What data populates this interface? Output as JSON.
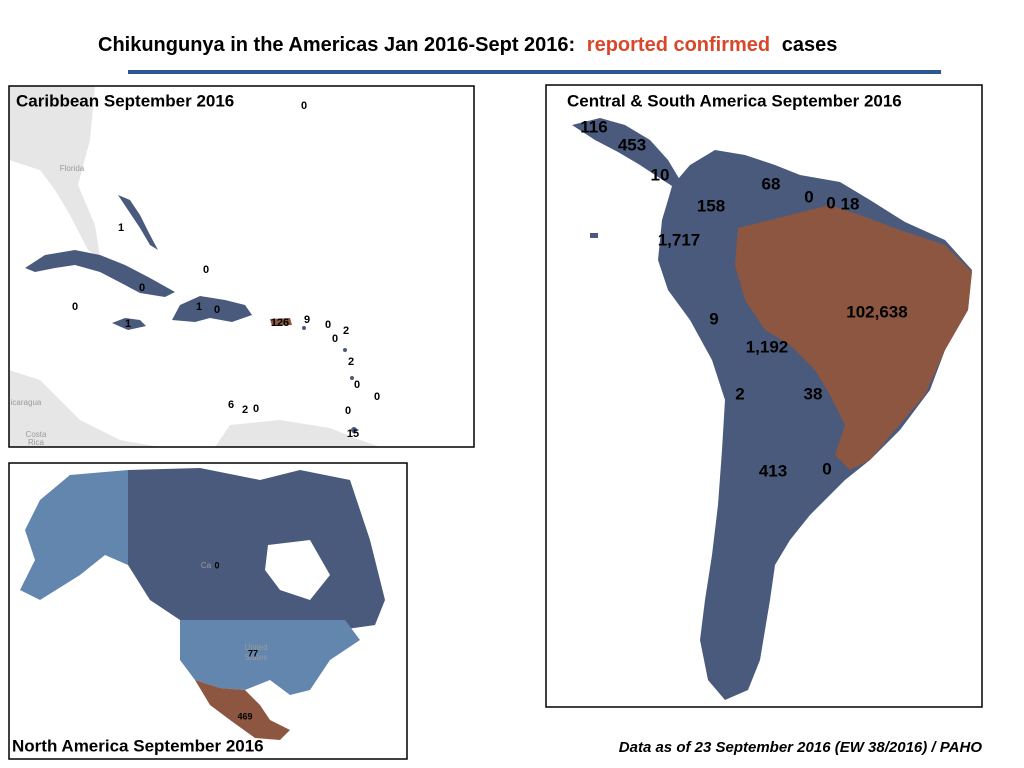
{
  "title": {
    "main": "Chikungunya in the Americas Jan 2016-Sept 2016:",
    "highlight": "reported confirmed",
    "end": "cases"
  },
  "caribbean": {
    "title": "Caribbean September 2016",
    "places": [
      "Florida",
      "icaragua",
      "Costa",
      "Rica"
    ],
    "labels": [
      "0",
      "1",
      "0",
      "0",
      "0",
      "1",
      "0",
      "1",
      "126",
      "9",
      "0",
      "2",
      "0",
      "2",
      "0",
      "0",
      "6",
      "2",
      "0",
      "0",
      "15"
    ]
  },
  "central_south": {
    "title": "Central & South America September 2016",
    "labels": [
      "116",
      "453",
      "10",
      "68",
      "0",
      "0",
      "18",
      "158",
      "1,717",
      "102,638",
      "9",
      "1,192",
      "2",
      "38",
      "413",
      "0"
    ]
  },
  "north_america": {
    "title": "North America September  2016",
    "places": [
      "Ca",
      "United",
      "States"
    ],
    "labels": [
      "0",
      "77",
      "469"
    ]
  },
  "footer": "Data as of 23 September 2016 (EW 38/2016) / PAHO"
}
